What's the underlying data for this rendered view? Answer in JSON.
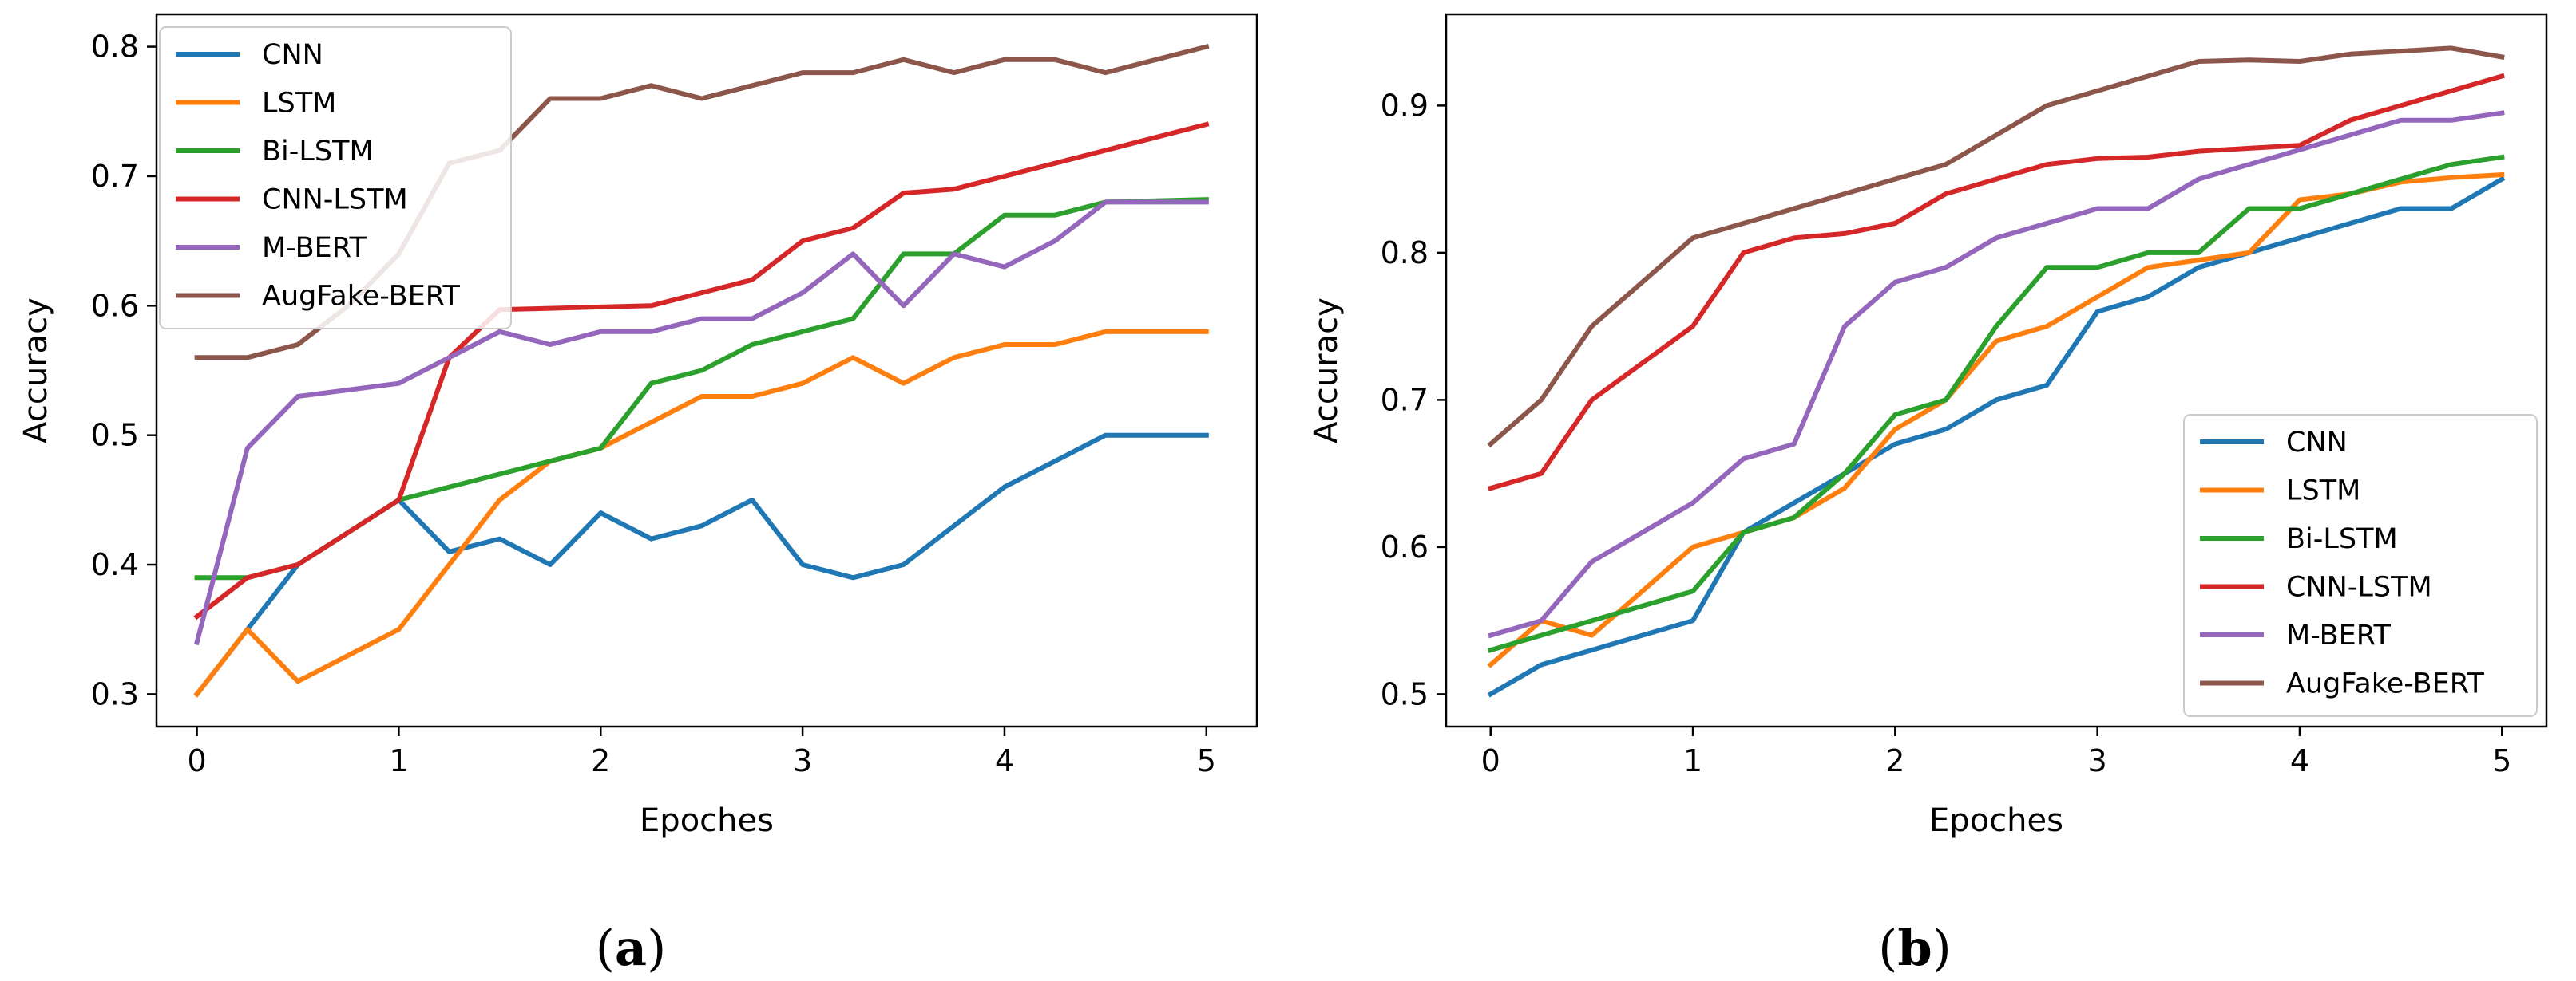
{
  "chart_data": [
    {
      "type": "line",
      "panel": "(a)",
      "caption_letter": "a",
      "xlabel": "Epoches",
      "ylabel": "Accuracy",
      "xlim": [
        -0.2,
        5.25
      ],
      "ylim": [
        0.275,
        0.825
      ],
      "xticks": [
        "0",
        "1",
        "2",
        "3",
        "4",
        "5"
      ],
      "yticks": [
        "0.3",
        "0.4",
        "0.5",
        "0.6",
        "0.7",
        "0.8"
      ],
      "legend": "top-left",
      "x": [
        0,
        0.25,
        0.5,
        0.75,
        1,
        1.25,
        1.5,
        1.75,
        2,
        2.25,
        2.5,
        2.75,
        3,
        3.25,
        3.5,
        3.75,
        4,
        4.25,
        4.5,
        4.75,
        5
      ],
      "series": [
        {
          "name": "CNN",
          "color": "#1f77b4",
          "values": [
            0.3,
            0.35,
            0.4,
            0.425,
            0.45,
            0.41,
            0.42,
            0.4,
            0.44,
            0.42,
            0.43,
            0.45,
            0.4,
            0.39,
            0.4,
            0.43,
            0.46,
            0.48,
            0.5,
            0.5,
            0.5
          ]
        },
        {
          "name": "LSTM",
          "color": "#ff7f0e",
          "values": [
            0.3,
            0.35,
            0.31,
            0.33,
            0.35,
            0.4,
            0.45,
            0.48,
            0.49,
            0.51,
            0.53,
            0.53,
            0.54,
            0.56,
            0.54,
            0.56,
            0.57,
            0.57,
            0.58,
            0.58,
            0.58
          ]
        },
        {
          "name": "Bi-LSTM",
          "color": "#2ca02c",
          "values": [
            0.39,
            0.39,
            0.4,
            0.425,
            0.45,
            0.46,
            0.47,
            0.48,
            0.49,
            0.54,
            0.55,
            0.57,
            0.58,
            0.59,
            0.64,
            0.64,
            0.67,
            0.67,
            0.68,
            0.681,
            0.682
          ]
        },
        {
          "name": "CNN-LSTM",
          "color": "#d62728",
          "values": [
            0.36,
            0.39,
            0.4,
            0.425,
            0.45,
            0.56,
            0.597,
            0.598,
            0.599,
            0.6,
            0.61,
            0.62,
            0.65,
            0.66,
            0.687,
            0.69,
            0.7,
            0.71,
            0.72,
            0.73,
            0.74
          ]
        },
        {
          "name": "M-BERT",
          "color": "#9467bd",
          "values": [
            0.34,
            0.49,
            0.53,
            0.535,
            0.54,
            0.56,
            0.58,
            0.57,
            0.58,
            0.58,
            0.59,
            0.59,
            0.61,
            0.64,
            0.6,
            0.64,
            0.63,
            0.65,
            0.68,
            0.68,
            0.68
          ]
        },
        {
          "name": "AugFake-BERT",
          "color": "#8c564b",
          "values": [
            0.56,
            0.56,
            0.57,
            0.6,
            0.64,
            0.71,
            0.72,
            0.76,
            0.76,
            0.77,
            0.76,
            0.77,
            0.78,
            0.78,
            0.79,
            0.78,
            0.79,
            0.79,
            0.78,
            0.79,
            0.8
          ]
        }
      ]
    },
    {
      "type": "line",
      "panel": "(b)",
      "caption_letter": "b",
      "xlabel": "Epoches",
      "ylabel": "Accuracy",
      "xlim": [
        -0.22,
        5.22
      ],
      "ylim": [
        0.478,
        0.962
      ],
      "xticks": [
        "0",
        "1",
        "2",
        "3",
        "4",
        "5"
      ],
      "yticks": [
        "0.5",
        "0.6",
        "0.7",
        "0.8",
        "0.9"
      ],
      "legend": "bottom-right",
      "x": [
        0,
        0.25,
        0.5,
        0.75,
        1,
        1.25,
        1.5,
        1.75,
        2,
        2.25,
        2.5,
        2.75,
        3,
        3.25,
        3.5,
        3.75,
        4,
        4.25,
        4.5,
        4.75,
        5
      ],
      "series": [
        {
          "name": "CNN",
          "color": "#1f77b4",
          "values": [
            0.5,
            0.52,
            0.53,
            0.54,
            0.55,
            0.61,
            0.63,
            0.65,
            0.67,
            0.68,
            0.7,
            0.71,
            0.76,
            0.77,
            0.79,
            0.8,
            0.81,
            0.82,
            0.83,
            0.83,
            0.85
          ]
        },
        {
          "name": "LSTM",
          "color": "#ff7f0e",
          "values": [
            0.52,
            0.55,
            0.54,
            0.57,
            0.6,
            0.61,
            0.62,
            0.64,
            0.68,
            0.7,
            0.74,
            0.75,
            0.77,
            0.79,
            0.795,
            0.8,
            0.836,
            0.84,
            0.848,
            0.851,
            0.853
          ]
        },
        {
          "name": "Bi-LSTM",
          "color": "#2ca02c",
          "values": [
            0.53,
            0.54,
            0.55,
            0.56,
            0.57,
            0.61,
            0.62,
            0.65,
            0.69,
            0.7,
            0.75,
            0.79,
            0.79,
            0.8,
            0.8,
            0.83,
            0.83,
            0.84,
            0.85,
            0.86,
            0.865
          ]
        },
        {
          "name": "CNN-LSTM",
          "color": "#d62728",
          "values": [
            0.64,
            0.65,
            0.7,
            0.725,
            0.75,
            0.8,
            0.81,
            0.813,
            0.82,
            0.84,
            0.85,
            0.86,
            0.864,
            0.865,
            0.869,
            0.871,
            0.873,
            0.89,
            0.9,
            0.91,
            0.92
          ]
        },
        {
          "name": "M-BERT",
          "color": "#9467bd",
          "values": [
            0.54,
            0.55,
            0.59,
            0.61,
            0.63,
            0.66,
            0.67,
            0.75,
            0.78,
            0.79,
            0.81,
            0.82,
            0.83,
            0.83,
            0.85,
            0.86,
            0.87,
            0.88,
            0.89,
            0.89,
            0.895
          ]
        },
        {
          "name": "AugFake-BERT",
          "color": "#8c564b",
          "values": [
            0.67,
            0.7,
            0.75,
            0.78,
            0.81,
            0.82,
            0.83,
            0.84,
            0.85,
            0.86,
            0.88,
            0.9,
            0.91,
            0.92,
            0.93,
            0.931,
            0.93,
            0.935,
            0.937,
            0.939,
            0.933
          ]
        }
      ]
    }
  ]
}
